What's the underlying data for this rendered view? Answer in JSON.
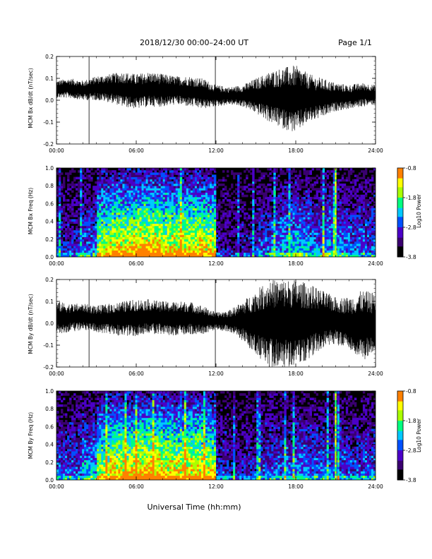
{
  "header": {
    "title": "2018/12/30  00:00–24:00 UT",
    "page": "Page 1/1"
  },
  "xlabel": "Universal Time (hh:mm)",
  "colors": {
    "trace": "#000000",
    "colormap": [
      "#000000",
      "#3a0070",
      "#4b00c8",
      "#0050ff",
      "#00c8ff",
      "#00ff80",
      "#aaff00",
      "#ffff00",
      "#ff8000",
      "#ff0000"
    ]
  },
  "chart_data": [
    {
      "type": "line",
      "ylabel": "MCM Bx dB/dt (nT/sec)",
      "xlim": [
        0,
        24
      ],
      "ylim": [
        -0.2,
        0.2
      ],
      "xticks": [
        "00:00",
        "06:00",
        "12:00",
        "18:00",
        "24:00"
      ],
      "yticks": [
        "-0.2",
        "-0.1",
        "0.0",
        "0.1",
        "0.2"
      ],
      "ytick_values": [
        -0.2,
        -0.1,
        0.0,
        0.1,
        0.2
      ],
      "envelope": {
        "x": [
          0,
          1,
          2,
          3,
          4,
          5,
          6,
          7,
          8,
          9,
          10,
          11,
          12,
          13,
          14,
          15,
          16,
          17,
          18,
          19,
          20,
          21,
          22,
          23,
          24
        ],
        "upper": [
          0.09,
          0.1,
          0.09,
          0.11,
          0.12,
          0.13,
          0.12,
          0.13,
          0.12,
          0.11,
          0.11,
          0.1,
          0.07,
          0.06,
          0.07,
          0.1,
          0.13,
          0.15,
          0.16,
          0.12,
          0.1,
          0.08,
          0.07,
          0.08,
          0.07
        ],
        "lower": [
          0.01,
          0.01,
          0.0,
          0.0,
          -0.01,
          -0.03,
          -0.04,
          -0.03,
          -0.03,
          -0.02,
          -0.03,
          -0.04,
          -0.03,
          -0.02,
          -0.03,
          -0.06,
          -0.1,
          -0.13,
          -0.15,
          -0.1,
          -0.08,
          -0.05,
          -0.04,
          -0.03,
          -0.02
        ]
      },
      "spikes_hours": [
        2.45,
        11.95
      ]
    },
    {
      "type": "heatmap",
      "ylabel": "MCM Bx Freq (Hz)",
      "colorbar_label": "Log10 Power",
      "colorbar_ticks": [
        "-0.8",
        "-1.8",
        "-2.8",
        "-3.8"
      ],
      "colorbar_range": [
        -3.8,
        -0.8
      ],
      "xlim": [
        0,
        24
      ],
      "ylim": [
        0,
        1
      ],
      "xticks": [
        "00:00",
        "06:00",
        "12:00",
        "18:00",
        "24:00"
      ],
      "yticks": [
        "0.0",
        "0.2",
        "0.4",
        "0.6",
        "0.8",
        "1.0"
      ],
      "ytick_values": [
        0.0,
        0.2,
        0.4,
        0.6,
        0.8,
        1.0
      ],
      "activity_by_hour": [
        0.35,
        0.35,
        0.45,
        0.85,
        0.95,
        0.95,
        1.0,
        1.0,
        0.95,
        0.95,
        0.95,
        0.9,
        0.3,
        0.25,
        0.3,
        0.4,
        0.5,
        0.55,
        0.6,
        0.5,
        0.55,
        0.5,
        0.45,
        0.45
      ],
      "bright_line_hour": 21.0
    },
    {
      "type": "line",
      "ylabel": "MCM By dB/dt (nT/sec)",
      "xlim": [
        0,
        24
      ],
      "ylim": [
        -0.2,
        0.2
      ],
      "xticks": [
        "00:00",
        "06:00",
        "12:00",
        "18:00",
        "24:00"
      ],
      "yticks": [
        "-0.2",
        "-0.1",
        "0.0",
        "0.1",
        "0.2"
      ],
      "ytick_values": [
        -0.2,
        -0.1,
        0.0,
        0.1,
        0.2
      ],
      "envelope": {
        "x": [
          0,
          1,
          2,
          3,
          4,
          5,
          6,
          7,
          8,
          9,
          10,
          11,
          12,
          13,
          14,
          15,
          16,
          17,
          18,
          19,
          20,
          21,
          22,
          23,
          24
        ],
        "upper": [
          0.1,
          0.09,
          0.09,
          0.08,
          0.09,
          0.1,
          0.11,
          0.11,
          0.1,
          0.1,
          0.1,
          0.08,
          0.05,
          0.06,
          0.1,
          0.15,
          0.2,
          0.2,
          0.2,
          0.18,
          0.15,
          0.12,
          0.12,
          0.15,
          0.14
        ],
        "lower": [
          -0.05,
          -0.04,
          -0.03,
          -0.04,
          -0.05,
          -0.06,
          -0.06,
          -0.05,
          -0.05,
          -0.06,
          -0.05,
          -0.05,
          -0.03,
          -0.04,
          -0.08,
          -0.15,
          -0.2,
          -0.2,
          -0.2,
          -0.17,
          -0.12,
          -0.1,
          -0.12,
          -0.17,
          -0.15
        ]
      },
      "spikes_hours": [
        2.45,
        11.95
      ]
    },
    {
      "type": "heatmap",
      "ylabel": "MCM By Freq (Hz)",
      "colorbar_label": "Log10 Power",
      "colorbar_ticks": [
        "-0.8",
        "-1.8",
        "-2.8",
        "-3.8"
      ],
      "colorbar_range": [
        -3.8,
        -0.8
      ],
      "xlim": [
        0,
        24
      ],
      "ylim": [
        0,
        1
      ],
      "xticks": [
        "00:00",
        "06:00",
        "12:00",
        "18:00",
        "24:00"
      ],
      "yticks": [
        "0.0",
        "0.2",
        "0.4",
        "0.6",
        "0.8",
        "1.0"
      ],
      "ytick_values": [
        0.0,
        0.2,
        0.4,
        0.6,
        0.8,
        1.0
      ],
      "activity_by_hour": [
        0.45,
        0.45,
        0.55,
        0.85,
        0.95,
        0.95,
        1.0,
        1.0,
        0.95,
        0.95,
        0.95,
        0.9,
        0.35,
        0.3,
        0.35,
        0.4,
        0.45,
        0.45,
        0.5,
        0.45,
        0.45,
        0.45,
        0.4,
        0.45
      ],
      "bright_line_hour": 21.0
    }
  ]
}
